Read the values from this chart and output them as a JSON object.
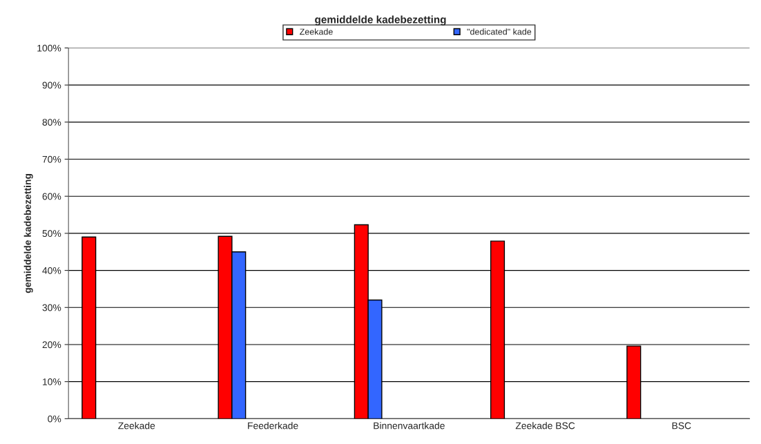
{
  "chart_data": {
    "type": "bar",
    "title": "gemiddelde kadebezetting",
    "ylabel": "gemiddelde kadebezetting",
    "categories": [
      "Zeekade",
      "Feederkade",
      "Binnenvaartkade",
      "Zeekade BSC",
      "BSC"
    ],
    "series": [
      {
        "name": "Zeekade",
        "color": "#ff0000",
        "values": [
          49.0,
          49.2,
          52.3,
          47.9,
          19.6
        ]
      },
      {
        "name": "\"dedicated\" kade",
        "color": "#3366ff",
        "values": [
          null,
          45.0,
          32.0,
          null,
          null
        ]
      }
    ],
    "ylim": [
      0,
      100
    ],
    "yticks": [
      {
        "value": 0,
        "label": "0%"
      },
      {
        "value": 10,
        "label": "10%"
      },
      {
        "value": 20,
        "label": "20%"
      },
      {
        "value": 30,
        "label": "30%"
      },
      {
        "value": 40,
        "label": "40%"
      },
      {
        "value": 50,
        "label": "50%"
      },
      {
        "value": 60,
        "label": "60%"
      },
      {
        "value": 70,
        "label": "70%"
      },
      {
        "value": 80,
        "label": "80%"
      },
      {
        "value": 90,
        "label": "90%"
      },
      {
        "value": 100,
        "label": "100%"
      }
    ],
    "grid": "y",
    "legend": "top"
  }
}
